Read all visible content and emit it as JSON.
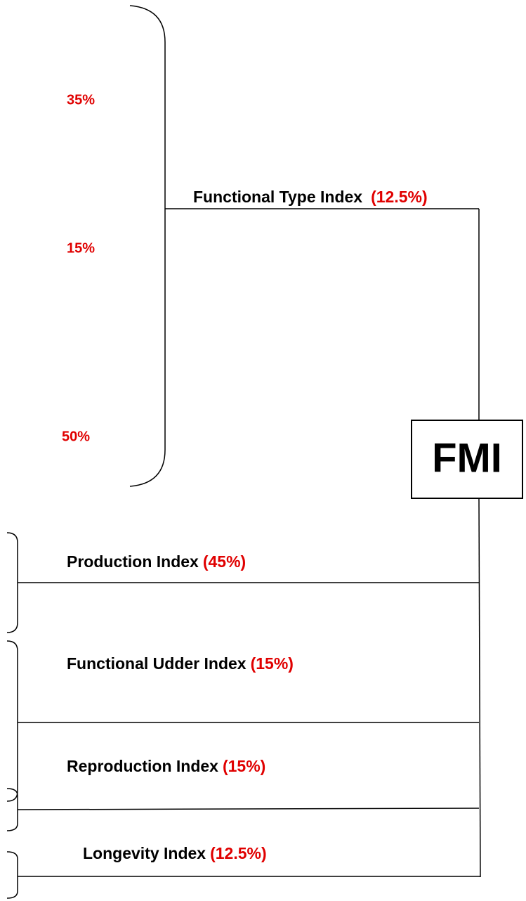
{
  "root": "FMI",
  "type_components": [
    "35%",
    "15%",
    "50%"
  ],
  "indices": [
    {
      "label": "Functional Type Index",
      "weight": "(12.5%)"
    },
    {
      "label": "Production Index",
      "weight": "(45%)"
    },
    {
      "label": "Functional Udder Index",
      "weight": "(15%)"
    },
    {
      "label": "Reproduction Index",
      "weight": "(15%)"
    },
    {
      "label": "Longevity Index",
      "weight": "(12.5%)"
    }
  ]
}
